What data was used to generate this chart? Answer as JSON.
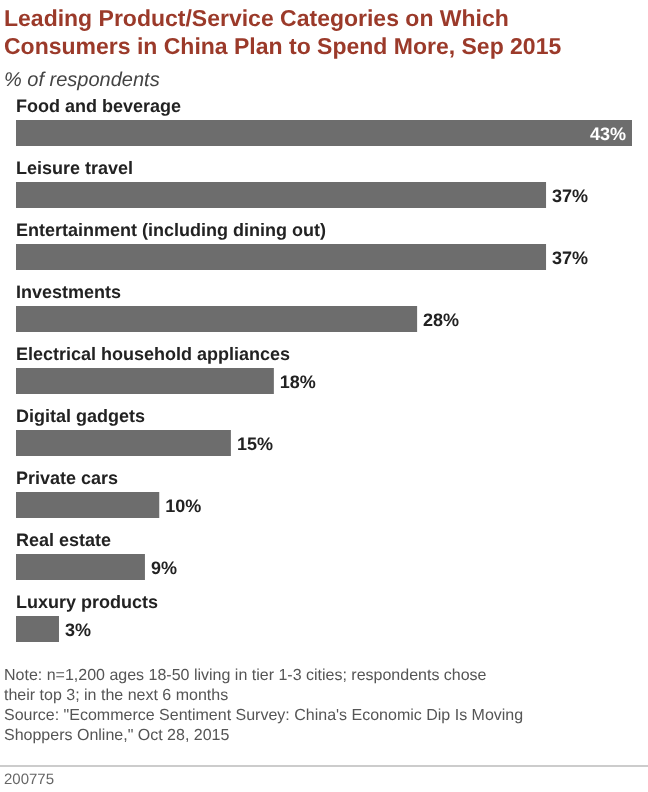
{
  "chart_data": {
    "type": "bar",
    "orientation": "horizontal",
    "title": "Leading Product/Service Categories on Which Consumers in China Plan to Spend More, Sep 2015",
    "subtitle": "% of respondents",
    "categories": [
      "Food and beverage",
      "Leisure travel",
      "Entertainment (including dining out)",
      "Investments",
      "Electrical household appliances",
      "Digital gadgets",
      "Private cars",
      "Real estate",
      "Luxury products"
    ],
    "values": [
      43,
      37,
      37,
      28,
      18,
      15,
      10,
      9,
      3
    ],
    "value_labels": [
      "43%",
      "37%",
      "37%",
      "28%",
      "18%",
      "15%",
      "10%",
      "9%",
      "3%"
    ],
    "color": "#6d6d6d",
    "annotations": [
      "Note: n=1,200 ages 18-50 living in tier 1-3 cities; respondents chose their top 3; in the next 6 months",
      "Source: \"Ecommerce Sentiment Survey: China's Economic Dip Is Moving Shoppers Online,\" Oct 28, 2015",
      "200775"
    ]
  }
}
